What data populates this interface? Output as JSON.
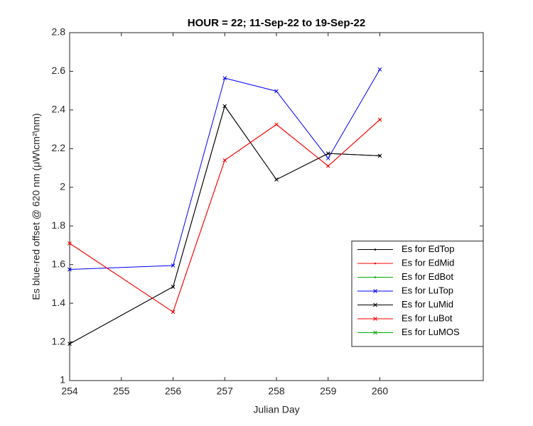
{
  "chart_data": {
    "type": "line",
    "title": "HOUR = 22; 11-Sep-22 to 19-Sep-22",
    "x_label": "Julian Day",
    "y_label": "Es blue-red offset @ 620 nm (μW\\cm²\\nm)",
    "x": [
      254,
      256,
      257,
      258,
      259,
      260
    ],
    "xlim": [
      254,
      262
    ],
    "xticks": [
      254,
      255,
      256,
      257,
      258,
      259,
      260
    ],
    "ylim": [
      1,
      2.8
    ],
    "yticks": [
      1,
      1.2,
      1.4,
      1.6,
      1.8,
      2,
      2.2,
      2.4,
      2.6,
      2.8
    ],
    "grid": false,
    "legend": "southeast",
    "series": [
      {
        "name": "Es for EdTop",
        "color": "#000000",
        "marker": ".",
        "values": [
          1.19,
          1.485,
          2.42,
          2.04,
          2.175,
          2.163
        ]
      },
      {
        "name": "Es for EdMid",
        "color": "#ff0000",
        "marker": ".",
        "values": [
          1.71,
          1.355,
          2.14,
          2.325,
          2.11,
          2.35
        ]
      },
      {
        "name": "Es for EdBot",
        "color": "#00aa00",
        "marker": ".",
        "values": [
          null,
          null,
          null,
          null,
          null,
          null
        ]
      },
      {
        "name": "Es for LuTop",
        "color": "#0000ff",
        "marker": "x",
        "values": [
          1.575,
          1.595,
          2.565,
          2.497,
          2.15,
          2.61
        ]
      },
      {
        "name": "Es for LuMid",
        "color": "#000000",
        "marker": "x",
        "values": [
          1.19,
          1.485,
          2.42,
          2.04,
          2.175,
          2.163
        ]
      },
      {
        "name": "Es for LuBot",
        "color": "#ff0000",
        "marker": "x",
        "values": [
          1.71,
          1.355,
          2.14,
          2.325,
          2.11,
          2.35
        ]
      },
      {
        "name": "Es for LuMOS",
        "color": "#00aa00",
        "marker": "x",
        "values": [
          null,
          null,
          null,
          null,
          null,
          null
        ]
      }
    ]
  }
}
